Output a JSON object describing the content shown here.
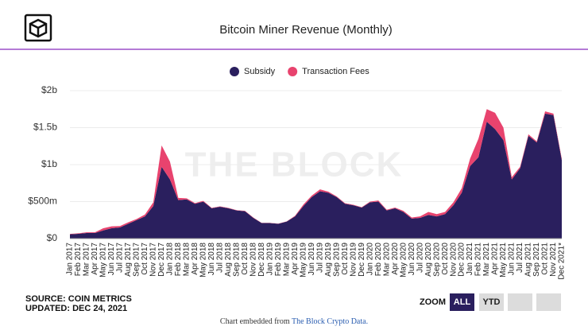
{
  "logo": "THE BLOCK",
  "chart_data": {
    "type": "stacked_area",
    "title": "Bitcoin Miner Revenue (Monthly)",
    "watermark": "THE BLOCK",
    "categories": [
      "Jan 2017",
      "Feb 2017",
      "Mar 2017",
      "Apr 2017",
      "May 2017",
      "Jun 2017",
      "Jul 2017",
      "Aug 2017",
      "Sep 2017",
      "Oct 2017",
      "Nov 2017",
      "Dec 2017",
      "Jan 2018",
      "Feb 2018",
      "Mar 2018",
      "Apr 2018",
      "May 2018",
      "Jun 2018",
      "Jul 2018",
      "Aug 2018",
      "Sep 2018",
      "Oct 2018",
      "Nov 2018",
      "Dec 2018",
      "Jan 2019",
      "Feb 2019",
      "Mar 2019",
      "Apr 2019",
      "May 2019",
      "Jun 2019",
      "Jul 2019",
      "Aug 2019",
      "Sep 2019",
      "Oct 2019",
      "Nov 2019",
      "Dec 2019",
      "Jan 2020",
      "Feb 2020",
      "Mar 2020",
      "Apr 2020",
      "May 2020",
      "Jun 2020",
      "Jul 2020",
      "Aug 2020",
      "Sep 2020",
      "Oct 2020",
      "Nov 2020",
      "Dec 2020",
      "Jan 2021",
      "Feb 2021",
      "Mar 2021",
      "Apr 2021",
      "May 2021",
      "Jun 2021",
      "Jul 2021",
      "Aug 2021",
      "Sep 2021",
      "Oct 2021",
      "Nov 2021",
      "Dec 2021*"
    ],
    "series": [
      {
        "name": "Subsidy",
        "color": "#2a1f5e",
        "values": [
          58,
          65,
          75,
          75,
          110,
          140,
          150,
          200,
          250,
          300,
          440,
          970,
          800,
          520,
          530,
          470,
          500,
          410,
          430,
          410,
          380,
          370,
          280,
          210,
          210,
          200,
          230,
          300,
          440,
          560,
          640,
          620,
          560,
          470,
          450,
          420,
          490,
          500,
          380,
          410,
          360,
          270,
          280,
          320,
          300,
          330,
          450,
          620,
          980,
          1100,
          1580,
          1480,
          1330,
          800,
          950,
          1390,
          1300,
          1690,
          1670,
          1060
        ]
      },
      {
        "name": "Transaction Fees",
        "color": "#e8436e",
        "values": [
          5,
          6,
          10,
          10,
          30,
          25,
          20,
          20,
          15,
          25,
          50,
          290,
          240,
          30,
          15,
          10,
          10,
          5,
          5,
          5,
          5,
          5,
          5,
          3,
          3,
          3,
          3,
          8,
          20,
          20,
          25,
          15,
          10,
          8,
          7,
          5,
          10,
          15,
          10,
          10,
          15,
          15,
          20,
          40,
          30,
          30,
          40,
          60,
          100,
          250,
          170,
          220,
          170,
          30,
          20,
          20,
          15,
          30,
          20,
          20
        ]
      }
    ],
    "ylim": [
      0,
      2000
    ],
    "yticks": [
      {
        "value": 0,
        "label": "$0"
      },
      {
        "value": 500,
        "label": "$500m"
      },
      {
        "value": 1000,
        "label": "$1b"
      },
      {
        "value": 1500,
        "label": "$1.5b"
      },
      {
        "value": 2000,
        "label": "$2b"
      }
    ],
    "grid": true,
    "legend": "top"
  },
  "footer": {
    "source": "SOURCE: COIN METRICS",
    "updated": "UPDATED: DEC 24, 2021",
    "zoom": "ZOOM",
    "buttons": [
      "ALL",
      "YTD"
    ],
    "embed_text": "Chart embedded from ",
    "embed_link": "The Block Crypto Data."
  }
}
